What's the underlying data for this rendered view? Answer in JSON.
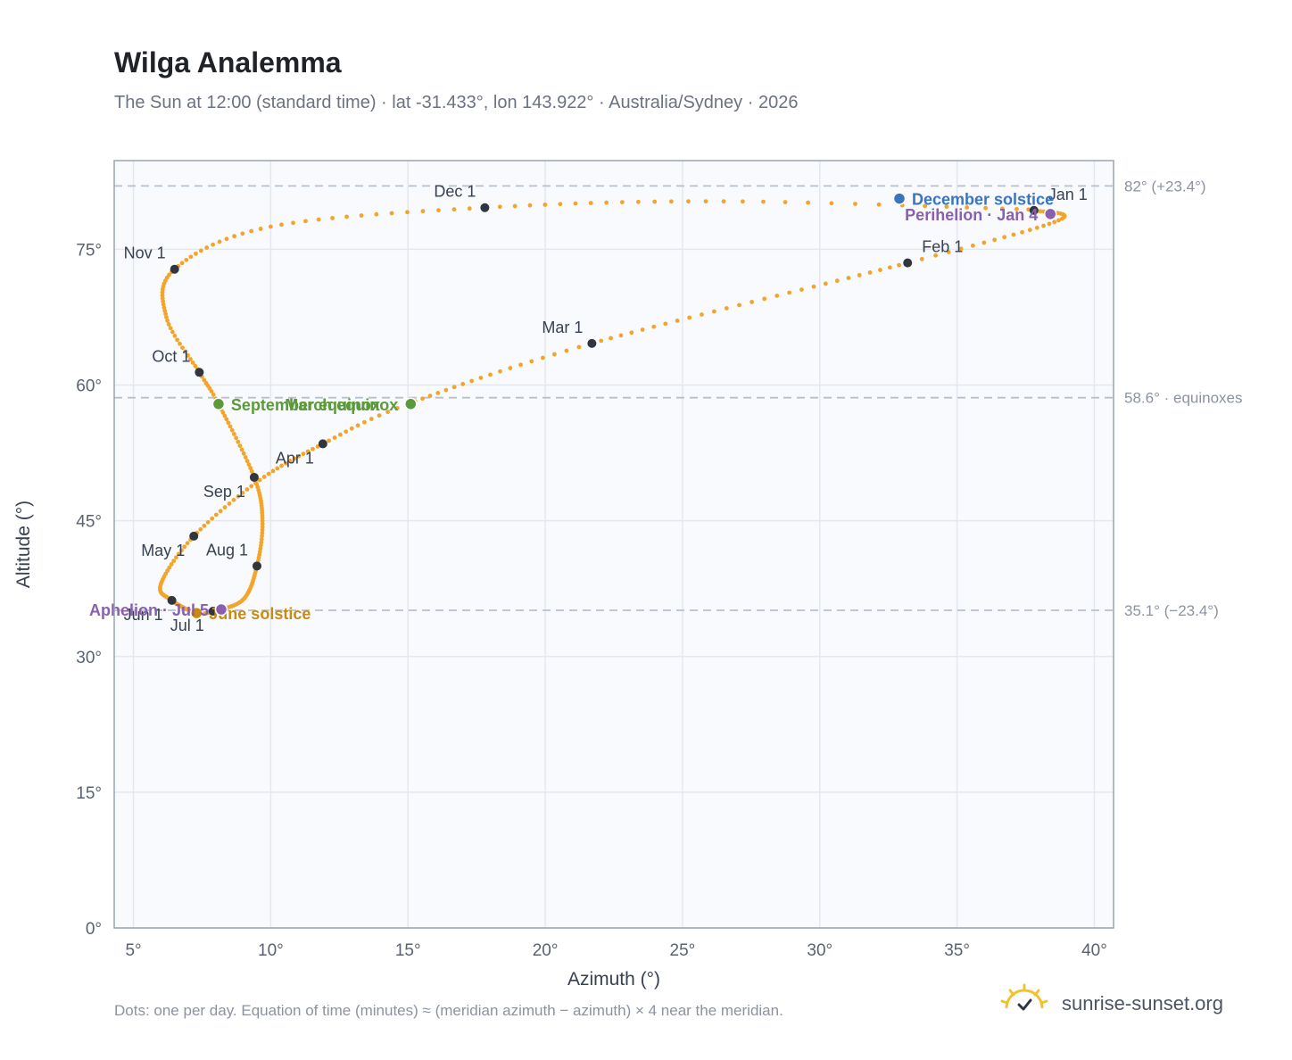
{
  "header": {
    "title": "Wilga Analemma",
    "subtitle": "The Sun at 12:00 (standard time) · lat -31.433°, lon 143.922° · Australia/Sydney · 2026"
  },
  "footer": {
    "note": "Dots: one per day. Equation of time (minutes) ≈ (meridian azimuth − azimuth) × 4 near the meridian.",
    "brand": "sunrise-sunset.org"
  },
  "colors": {
    "path": "#f2a52a",
    "month_marker": "#2f3640",
    "equinox": "#5b9a3a",
    "june_solstice": "#c98a12",
    "december_solstice": "#3a75bd",
    "apsis": "#8a5fb0",
    "reference_line": "#b8c0cc",
    "plot_bg": "#f8fafd"
  },
  "chart_data": {
    "type": "scatter",
    "title": "Wilga Analemma",
    "xlabel": "Azimuth (°)",
    "ylabel": "Altitude (°)",
    "xlim": [
      4.3,
      40.7
    ],
    "ylim": [
      0,
      84.8
    ],
    "xticks": [
      5,
      10,
      15,
      20,
      25,
      30,
      35,
      40
    ],
    "yticks": [
      0,
      15,
      30,
      45,
      60,
      75
    ],
    "grid": true,
    "series": [
      {
        "type": "daily-path",
        "anchors": [
          {
            "month": 1,
            "day": 1,
            "azimuth": 37.8,
            "altitude": 79.3
          },
          {
            "month": 1,
            "day": 16,
            "azimuth": 38.7,
            "altitude": 78.2
          },
          {
            "month": 2,
            "day": 1,
            "azimuth": 33.2,
            "altitude": 73.5
          },
          {
            "month": 3,
            "day": 1,
            "azimuth": 21.7,
            "altitude": 64.6
          },
          {
            "month": 3,
            "day": 20,
            "azimuth": 15.0,
            "altitude": 57.9
          },
          {
            "month": 4,
            "day": 1,
            "azimuth": 11.9,
            "altitude": 53.5
          },
          {
            "month": 4,
            "day": 15,
            "azimuth": 9.6,
            "altitude": 49.5
          },
          {
            "month": 5,
            "day": 1,
            "azimuth": 7.2,
            "altitude": 43.3
          },
          {
            "month": 5,
            "day": 16,
            "azimuth": 6.0,
            "altitude": 38.0
          },
          {
            "month": 6,
            "day": 1,
            "azimuth": 6.4,
            "altitude": 36.2
          },
          {
            "month": 6,
            "day": 21,
            "azimuth": 7.3,
            "altitude": 34.8
          },
          {
            "month": 7,
            "day": 1,
            "azimuth": 7.9,
            "altitude": 35.0
          },
          {
            "month": 7,
            "day": 16,
            "azimuth": 9.0,
            "altitude": 36.3
          },
          {
            "month": 8,
            "day": 1,
            "azimuth": 9.5,
            "altitude": 40.0
          },
          {
            "month": 8,
            "day": 16,
            "azimuth": 9.7,
            "altitude": 45.0
          },
          {
            "month": 9,
            "day": 1,
            "azimuth": 9.4,
            "altitude": 49.8
          },
          {
            "month": 9,
            "day": 22,
            "azimuth": 8.1,
            "altitude": 57.9
          },
          {
            "month": 10,
            "day": 1,
            "azimuth": 7.4,
            "altitude": 61.4
          },
          {
            "month": 10,
            "day": 16,
            "azimuth": 6.2,
            "altitude": 67.5
          },
          {
            "month": 11,
            "day": 1,
            "azimuth": 6.5,
            "altitude": 72.8
          },
          {
            "month": 11,
            "day": 16,
            "azimuth": 10.0,
            "altitude": 77.5
          },
          {
            "month": 12,
            "day": 1,
            "azimuth": 17.8,
            "altitude": 79.6
          },
          {
            "month": 12,
            "day": 16,
            "azimuth": 26.5,
            "altitude": 80.3
          },
          {
            "month": 12,
            "day": 31,
            "azimuth": 37.6,
            "altitude": 79.4
          }
        ]
      }
    ],
    "month_markers": [
      {
        "label": "Jan 1",
        "azimuth": 37.8,
        "altitude": 79.3,
        "label_pos": "above-right"
      },
      {
        "label": "Feb 1",
        "azimuth": 33.2,
        "altitude": 73.5,
        "label_pos": "above-right"
      },
      {
        "label": "Mar 1",
        "azimuth": 21.7,
        "altitude": 64.6,
        "label_pos": "above-left"
      },
      {
        "label": "Apr 1",
        "azimuth": 11.9,
        "altitude": 53.5,
        "label_pos": "below-left"
      },
      {
        "label": "May 1",
        "azimuth": 7.2,
        "altitude": 43.3,
        "label_pos": "below-left"
      },
      {
        "label": "Jun 1",
        "azimuth": 6.4,
        "altitude": 36.2,
        "label_pos": "below-left"
      },
      {
        "label": "Jul 1",
        "azimuth": 7.9,
        "altitude": 35.0,
        "label_pos": "below-left"
      },
      {
        "label": "Aug 1",
        "azimuth": 9.5,
        "altitude": 40.0,
        "label_pos": "above-left"
      },
      {
        "label": "Sep 1",
        "azimuth": 9.4,
        "altitude": 49.8,
        "label_pos": "below-left"
      },
      {
        "label": "Oct 1",
        "azimuth": 7.4,
        "altitude": 61.4,
        "label_pos": "above-left"
      },
      {
        "label": "Nov 1",
        "azimuth": 6.5,
        "altitude": 72.8,
        "label_pos": "above-left"
      },
      {
        "label": "Dec 1",
        "azimuth": 17.8,
        "altitude": 79.6,
        "label_pos": "above-left"
      }
    ],
    "events": [
      {
        "label": "March equinox",
        "azimuth": 15.1,
        "altitude": 57.9,
        "color_key": "equinox",
        "label_pos": "left"
      },
      {
        "label": "September equinox",
        "azimuth": 8.1,
        "altitude": 57.9,
        "color_key": "equinox",
        "label_pos": "right"
      },
      {
        "label": "June solstice",
        "azimuth": 7.3,
        "altitude": 34.8,
        "color_key": "june_solstice",
        "label_pos": "right"
      },
      {
        "label": "December solstice",
        "azimuth": 32.9,
        "altitude": 80.6,
        "color_key": "december_solstice",
        "label_pos": "right"
      },
      {
        "label": "Perihelion · Jan 4",
        "azimuth": 38.4,
        "altitude": 78.9,
        "color_key": "apsis",
        "label_pos": "left"
      },
      {
        "label": "Aphelion · Jul 5",
        "azimuth": 8.2,
        "altitude": 35.2,
        "color_key": "apsis",
        "label_pos": "left"
      }
    ],
    "reference_lines": [
      {
        "altitude": 82.0,
        "label": "82° (+23.4°)"
      },
      {
        "altitude": 58.6,
        "label": "58.6° · equinoxes"
      },
      {
        "altitude": 35.1,
        "label": "35.1° (−23.4°)"
      }
    ]
  }
}
